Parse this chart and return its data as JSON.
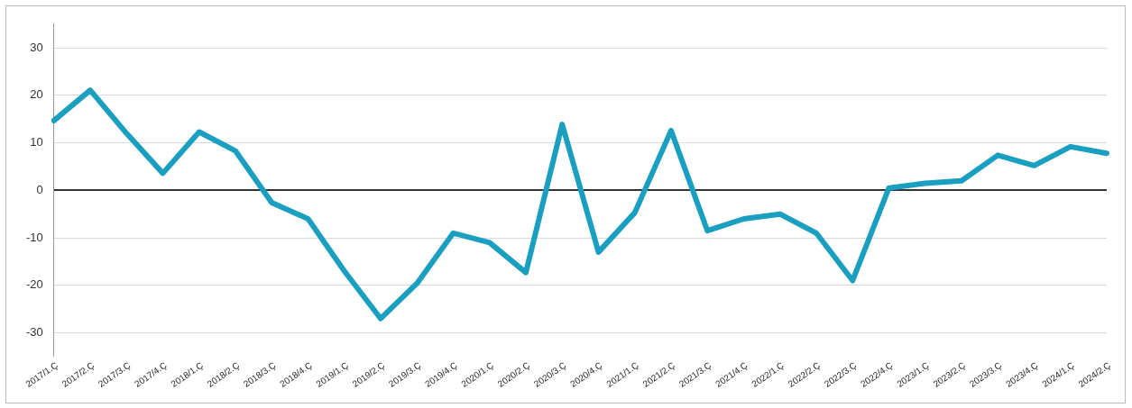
{
  "chart_data": {
    "type": "line",
    "categories": [
      "2017/1.Ç",
      "2017/2.Ç",
      "2017/3.Ç",
      "2017/4.Ç",
      "2018/1.Ç",
      "2018/2.Ç",
      "2018/3.Ç",
      "2018/4.Ç",
      "2019/1.Ç",
      "2019/2.Ç",
      "2019/3.Ç",
      "2019/4.Ç",
      "2020/1.Ç",
      "2020/2.Ç",
      "2020/3.Ç",
      "2020/4.Ç",
      "2021/1.Ç",
      "2021/2.Ç",
      "2021/3.Ç",
      "2021/4.Ç",
      "2022/1.Ç",
      "2022/2.Ç",
      "2022/3.Ç",
      "2022/4.Ç",
      "2023/1.Ç",
      "2023/2.Ç",
      "2023/3.Ç",
      "2023/4.Ç",
      "2024/1.Ç",
      "2024/2.Ç"
    ],
    "series": [
      {
        "color": "#1a9fc0",
        "values": [
          14.7,
          21.1,
          12,
          3.6,
          12.3,
          8.3,
          -2.6,
          -6,
          -17,
          -27,
          -19.6,
          -9,
          -11,
          -17.3,
          13.9,
          -13,
          -4.7,
          12.6,
          -8.5,
          -6,
          -5,
          -9,
          -19,
          0.5,
          1.5,
          2,
          7.4,
          5.2,
          9.2,
          7.8
        ]
      }
    ],
    "ylim": [
      -35,
      35
    ],
    "yticks": [
      -30,
      -20,
      -10,
      0,
      10,
      20,
      30
    ],
    "grid": "y",
    "legend": false,
    "marker": "none",
    "line_style": "solid"
  }
}
